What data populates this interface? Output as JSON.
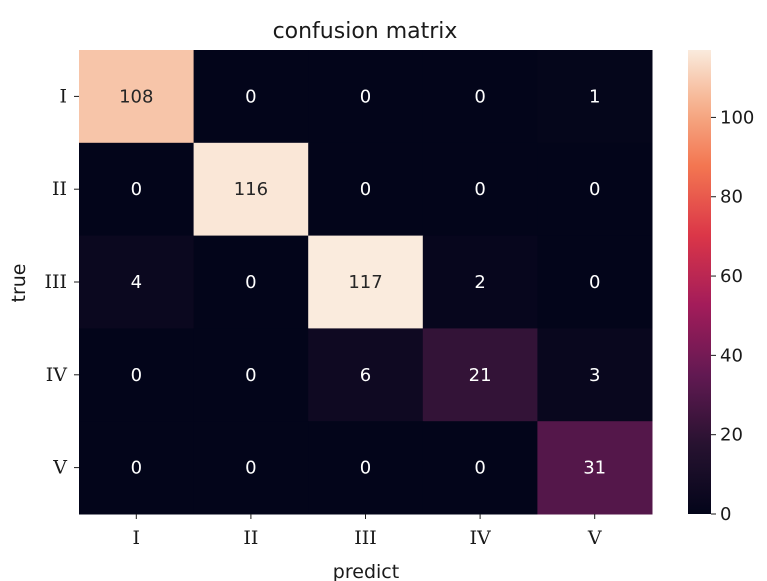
{
  "chart_data": {
    "type": "heatmap",
    "title": "confusion matrix",
    "xlabel": "predict",
    "ylabel": "true",
    "x_categories": [
      "I",
      "II",
      "III",
      "IV",
      "V"
    ],
    "y_categories": [
      "I",
      "II",
      "III",
      "IV",
      "V"
    ],
    "values": [
      [
        108,
        0,
        0,
        0,
        1
      ],
      [
        0,
        116,
        0,
        0,
        0
      ],
      [
        4,
        0,
        117,
        2,
        0
      ],
      [
        0,
        0,
        6,
        21,
        3
      ],
      [
        0,
        0,
        0,
        0,
        31
      ]
    ],
    "colorbar": {
      "range": [
        0,
        117
      ],
      "ticks": [
        0,
        20,
        40,
        60,
        80,
        100
      ],
      "colormap": "rocket"
    },
    "grid": false
  }
}
